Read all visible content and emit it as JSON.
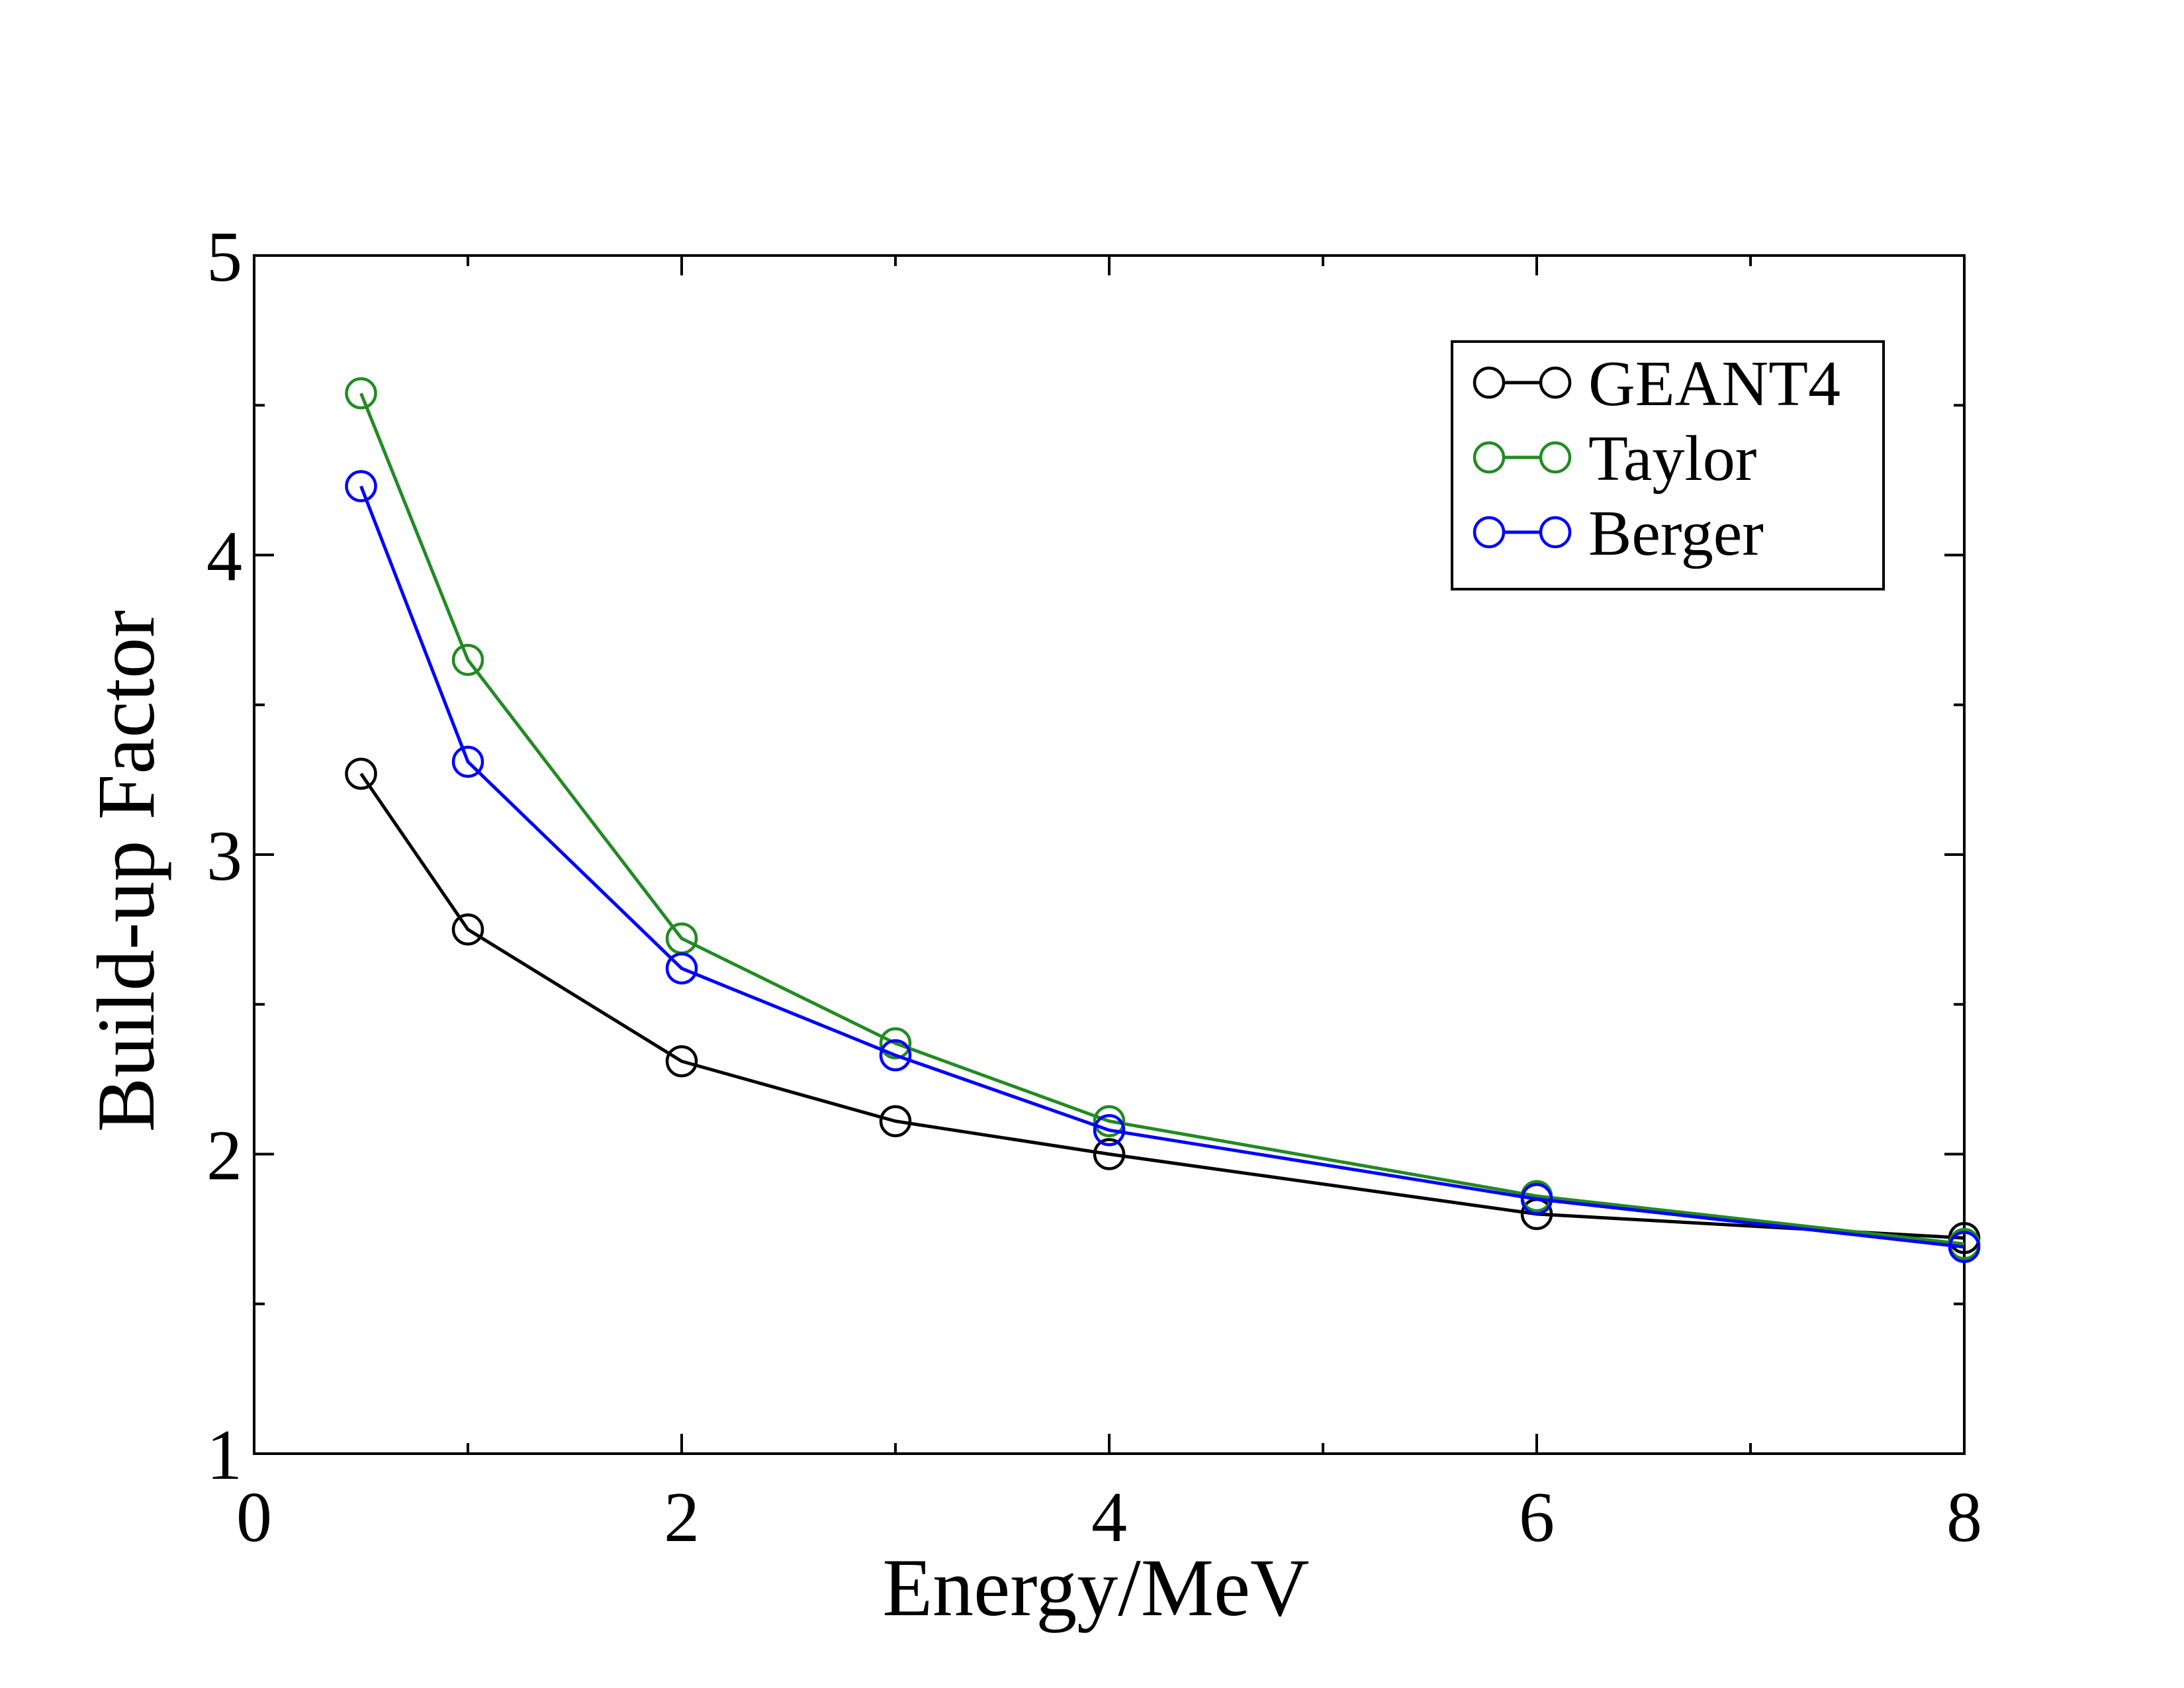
{
  "chart_data": {
    "type": "line",
    "xlabel": "Energy/MeV",
    "ylabel": "Build-up Factor",
    "xlim": [
      0,
      8
    ],
    "ylim": [
      1,
      5
    ],
    "x_ticks": [
      "0",
      "2",
      "4",
      "6",
      "8"
    ],
    "y_ticks": [
      "1",
      "2",
      "3",
      "4",
      "5"
    ],
    "x_minor_step": 1,
    "y_minor_step": 0.5,
    "grid": false,
    "legend_position": "top-right",
    "marker": "open-circle",
    "x": [
      0.5,
      1,
      2,
      3,
      4,
      6,
      8
    ],
    "series": [
      {
        "name": "GEANT4",
        "color": "#000000",
        "values": [
          3.27,
          2.75,
          2.31,
          2.11,
          2.0,
          1.8,
          1.72
        ]
      },
      {
        "name": "Taylor",
        "color": "#228B22",
        "values": [
          4.54,
          3.65,
          2.72,
          2.37,
          2.11,
          1.86,
          1.7
        ]
      },
      {
        "name": "Berger",
        "color": "#0000FF",
        "values": [
          4.23,
          3.31,
          2.62,
          2.33,
          2.08,
          1.85,
          1.69
        ]
      }
    ]
  }
}
